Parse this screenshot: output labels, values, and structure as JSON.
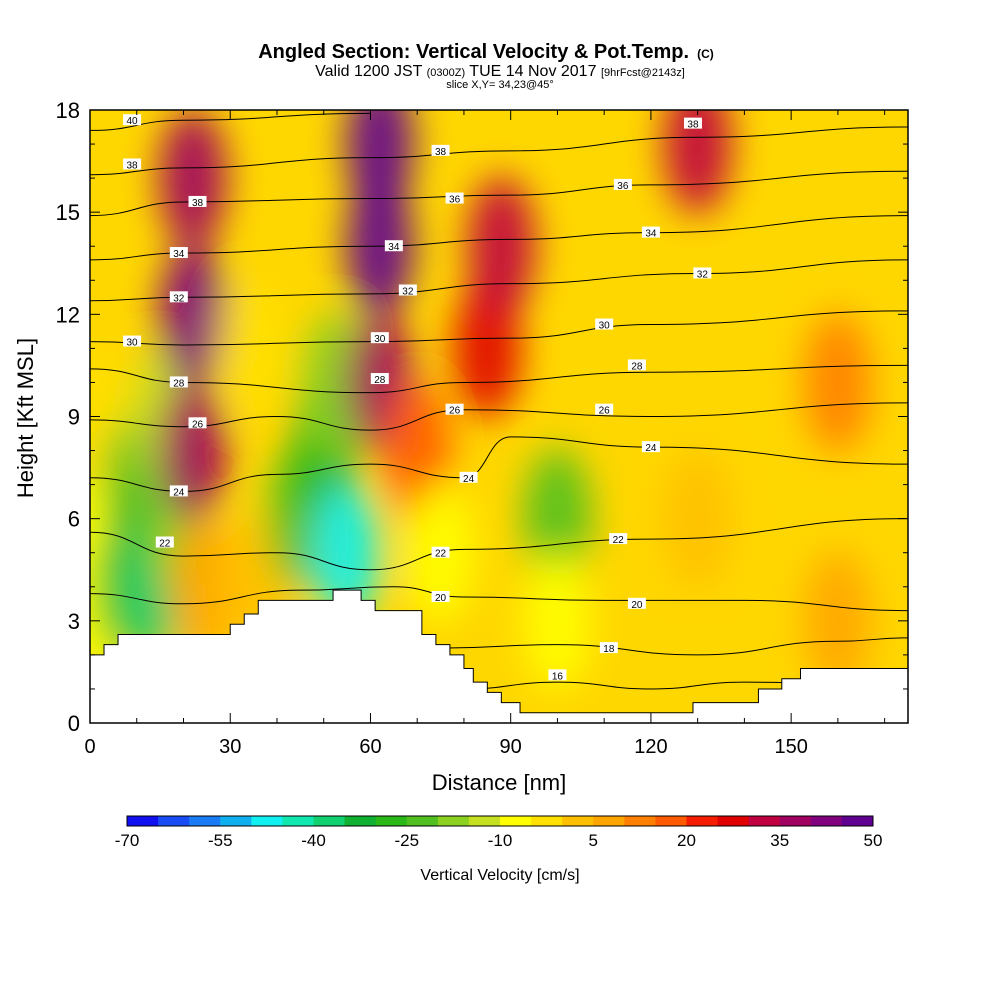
{
  "chart_data": {
    "type": "heatmap",
    "title": "Angled Section: Vertical Velocity & Pot.Temp.",
    "title_units": "(C)",
    "subtitle_parts": {
      "valid": "Valid 1200 JST",
      "utc": "(0300Z)",
      "date": "TUE 14 Nov 2017",
      "fcst": "[9hrFcst@2143z]"
    },
    "slice_label": "slice X,Y= 34,23@45°",
    "xlabel": "Distance [nm]",
    "ylabel": "Height [Kft MSL]",
    "xlim": [
      0,
      175
    ],
    "ylim": [
      0,
      18
    ],
    "x_ticks": [
      0,
      30,
      60,
      90,
      120,
      150
    ],
    "y_ticks": [
      0,
      3,
      6,
      9,
      12,
      15,
      18
    ],
    "colorbar": {
      "label": "Vertical Velocity [cm/s]",
      "tick_labels": [
        -70,
        -55,
        -40,
        -25,
        -10,
        5,
        20,
        35,
        50
      ],
      "colors": [
        "#1010f0",
        "#1a4cf5",
        "#1a7cf5",
        "#10b0f0",
        "#10f0f0",
        "#10e8b0",
        "#10d070",
        "#10b030",
        "#2ab818",
        "#50c020",
        "#8cd020",
        "#c4e020",
        "#ffff00",
        "#ffe000",
        "#ffc000",
        "#ffa500",
        "#ff8000",
        "#ff5a00",
        "#f51c00",
        "#e00000",
        "#c00040",
        "#a00060",
        "#800080",
        "#600090"
      ]
    },
    "velocity_cells": [
      {
        "x": 0,
        "y": 3,
        "value": -10
      },
      {
        "x": 0,
        "y": 6,
        "value": -10
      },
      {
        "x": 0,
        "y": 9,
        "value": -5
      },
      {
        "x": 8,
        "y": 4,
        "value": -25
      },
      {
        "x": 10,
        "y": 7,
        "value": -25
      },
      {
        "x": 12,
        "y": 5,
        "value": -35
      },
      {
        "x": 14,
        "y": 4,
        "value": -40
      },
      {
        "x": 16,
        "y": 9,
        "value": -15
      },
      {
        "x": 18,
        "y": 6,
        "value": -20
      },
      {
        "x": 22,
        "y": 8,
        "value": 35
      },
      {
        "x": 22,
        "y": 12,
        "value": 40
      },
      {
        "x": 22,
        "y": 16,
        "value": 35
      },
      {
        "x": 24,
        "y": 4,
        "value": 5
      },
      {
        "x": 35,
        "y": 4,
        "value": 0
      },
      {
        "x": 35,
        "y": 11,
        "value": -5
      },
      {
        "x": 45,
        "y": 6,
        "value": -25
      },
      {
        "x": 50,
        "y": 8,
        "value": -30
      },
      {
        "x": 55,
        "y": 5,
        "value": -50
      },
      {
        "x": 52,
        "y": 10,
        "value": -20
      },
      {
        "x": 62,
        "y": 10,
        "value": 35
      },
      {
        "x": 62,
        "y": 14,
        "value": 50
      },
      {
        "x": 62,
        "y": 17,
        "value": 45
      },
      {
        "x": 70,
        "y": 8,
        "value": 15
      },
      {
        "x": 75,
        "y": 5,
        "value": -10
      },
      {
        "x": 85,
        "y": 11,
        "value": 25
      },
      {
        "x": 88,
        "y": 14,
        "value": 30
      },
      {
        "x": 100,
        "y": 6,
        "value": -25
      },
      {
        "x": 100,
        "y": 3,
        "value": -10
      },
      {
        "x": 130,
        "y": 17,
        "value": 30
      },
      {
        "x": 130,
        "y": 6,
        "value": 0
      },
      {
        "x": 160,
        "y": 10,
        "value": 10
      },
      {
        "x": 160,
        "y": 3,
        "value": 5
      }
    ],
    "isentropes": [
      {
        "label": "16",
        "points": [
          [
            80,
            1.0
          ],
          [
            100,
            1.2
          ],
          [
            120,
            1.0
          ],
          [
            140,
            1.2
          ],
          [
            175,
            1.1
          ]
        ]
      },
      {
        "label": "18",
        "points": [
          [
            75,
            2.2
          ],
          [
            100,
            2.3
          ],
          [
            130,
            2.0
          ],
          [
            160,
            2.4
          ],
          [
            175,
            2.5
          ]
        ]
      },
      {
        "label": "20",
        "points": [
          [
            0,
            3.8
          ],
          [
            20,
            3.5
          ],
          [
            45,
            3.9
          ],
          [
            65,
            4.0
          ],
          [
            80,
            3.7
          ],
          [
            110,
            3.6
          ],
          [
            140,
            3.6
          ],
          [
            175,
            3.3
          ]
        ]
      },
      {
        "label": "22",
        "points": [
          [
            0,
            5.6
          ],
          [
            20,
            4.9
          ],
          [
            40,
            5.0
          ],
          [
            60,
            4.5
          ],
          [
            80,
            5.1
          ],
          [
            120,
            5.4
          ],
          [
            175,
            6.0
          ]
        ]
      },
      {
        "label": "24",
        "points": [
          [
            0,
            7.2
          ],
          [
            20,
            6.8
          ],
          [
            40,
            7.3
          ],
          [
            60,
            7.6
          ],
          [
            80,
            7.2
          ],
          [
            90,
            8.4
          ],
          [
            120,
            8.1
          ],
          [
            175,
            7.6
          ]
        ]
      },
      {
        "label": "26",
        "points": [
          [
            0,
            8.9
          ],
          [
            20,
            8.7
          ],
          [
            40,
            9.0
          ],
          [
            60,
            8.6
          ],
          [
            80,
            9.2
          ],
          [
            120,
            9.0
          ],
          [
            175,
            9.4
          ]
        ]
      },
      {
        "label": "28",
        "points": [
          [
            0,
            10.4
          ],
          [
            20,
            10.0
          ],
          [
            60,
            9.7
          ],
          [
            80,
            10.0
          ],
          [
            120,
            10.3
          ],
          [
            175,
            10.5
          ]
        ]
      },
      {
        "label": "30",
        "points": [
          [
            0,
            11.2
          ],
          [
            20,
            11.1
          ],
          [
            60,
            11.2
          ],
          [
            90,
            11.3
          ],
          [
            120,
            11.7
          ],
          [
            175,
            12.1
          ]
        ]
      },
      {
        "label": "32",
        "points": [
          [
            0,
            12.4
          ],
          [
            20,
            12.5
          ],
          [
            60,
            12.6
          ],
          [
            90,
            12.9
          ],
          [
            130,
            13.2
          ],
          [
            175,
            13.6
          ]
        ]
      },
      {
        "label": "34",
        "points": [
          [
            0,
            13.6
          ],
          [
            20,
            13.8
          ],
          [
            60,
            14.0
          ],
          [
            90,
            14.2
          ],
          [
            120,
            14.4
          ],
          [
            175,
            14.9
          ]
        ]
      },
      {
        "label": "36",
        "points": [
          [
            0,
            14.9
          ],
          [
            20,
            15.3
          ],
          [
            60,
            15.4
          ],
          [
            90,
            15.5
          ],
          [
            120,
            15.8
          ],
          [
            175,
            16.2
          ]
        ]
      },
      {
        "label": "38",
        "points": [
          [
            0,
            16.1
          ],
          [
            20,
            16.3
          ],
          [
            60,
            16.6
          ],
          [
            90,
            16.8
          ],
          [
            130,
            17.2
          ],
          [
            175,
            17.5
          ]
        ]
      },
      {
        "label": "40",
        "points": [
          [
            0,
            17.4
          ],
          [
            20,
            17.7
          ],
          [
            60,
            17.9
          ]
        ]
      }
    ],
    "contour_labels": [
      {
        "x": 9,
        "y": 17.7,
        "text": "40"
      },
      {
        "x": 9,
        "y": 16.4,
        "text": "38"
      },
      {
        "x": 23,
        "y": 15.3,
        "text": "38"
      },
      {
        "x": 19,
        "y": 13.8,
        "text": "34"
      },
      {
        "x": 19,
        "y": 12.5,
        "text": "32"
      },
      {
        "x": 9,
        "y": 11.2,
        "text": "30"
      },
      {
        "x": 19,
        "y": 10.0,
        "text": "28"
      },
      {
        "x": 23,
        "y": 8.8,
        "text": "26"
      },
      {
        "x": 19,
        "y": 6.8,
        "text": "24"
      },
      {
        "x": 16,
        "y": 5.3,
        "text": "22"
      },
      {
        "x": 75,
        "y": 16.8,
        "text": "38"
      },
      {
        "x": 78,
        "y": 15.4,
        "text": "36"
      },
      {
        "x": 65,
        "y": 14.0,
        "text": "34"
      },
      {
        "x": 68,
        "y": 12.7,
        "text": "32"
      },
      {
        "x": 62,
        "y": 11.3,
        "text": "30"
      },
      {
        "x": 62,
        "y": 10.1,
        "text": "28"
      },
      {
        "x": 78,
        "y": 9.2,
        "text": "26"
      },
      {
        "x": 81,
        "y": 7.2,
        "text": "24"
      },
      {
        "x": 75,
        "y": 5.0,
        "text": "22"
      },
      {
        "x": 75,
        "y": 3.7,
        "text": "20"
      },
      {
        "x": 129,
        "y": 17.6,
        "text": "38"
      },
      {
        "x": 114,
        "y": 15.8,
        "text": "36"
      },
      {
        "x": 120,
        "y": 14.4,
        "text": "34"
      },
      {
        "x": 131,
        "y": 13.2,
        "text": "32"
      },
      {
        "x": 110,
        "y": 11.7,
        "text": "30"
      },
      {
        "x": 117,
        "y": 10.5,
        "text": "28"
      },
      {
        "x": 110,
        "y": 9.2,
        "text": "26"
      },
      {
        "x": 120,
        "y": 8.1,
        "text": "24"
      },
      {
        "x": 113,
        "y": 5.4,
        "text": "22"
      },
      {
        "x": 117,
        "y": 3.5,
        "text": "20"
      },
      {
        "x": 111,
        "y": 2.2,
        "text": "18"
      },
      {
        "x": 100,
        "y": 1.4,
        "text": "16"
      }
    ],
    "terrain": [
      [
        0,
        2.0
      ],
      [
        3,
        2.0
      ],
      [
        3,
        2.3
      ],
      [
        6,
        2.3
      ],
      [
        6,
        2.6
      ],
      [
        8,
        2.6
      ],
      [
        10,
        2.6
      ],
      [
        30,
        2.6
      ],
      [
        30,
        2.9
      ],
      [
        33,
        2.9
      ],
      [
        33,
        3.2
      ],
      [
        36,
        3.2
      ],
      [
        36,
        3.6
      ],
      [
        52,
        3.6
      ],
      [
        52,
        3.9
      ],
      [
        58,
        3.9
      ],
      [
        58,
        3.6
      ],
      [
        61,
        3.6
      ],
      [
        61,
        3.3
      ],
      [
        71,
        3.3
      ],
      [
        71,
        2.6
      ],
      [
        74,
        2.6
      ],
      [
        74,
        2.3
      ],
      [
        77,
        2.3
      ],
      [
        77,
        2.0
      ],
      [
        80,
        2.0
      ],
      [
        80,
        1.6
      ],
      [
        82,
        1.6
      ],
      [
        82,
        1.2
      ],
      [
        85,
        1.2
      ],
      [
        85,
        0.9
      ],
      [
        88,
        0.9
      ],
      [
        88,
        0.6
      ],
      [
        92,
        0.6
      ],
      [
        92,
        0.3
      ],
      [
        98,
        0.3
      ],
      [
        98,
        0.3
      ],
      [
        129,
        0.3
      ],
      [
        129,
        0.6
      ],
      [
        143,
        0.6
      ],
      [
        143,
        1.0
      ],
      [
        148,
        1.0
      ],
      [
        148,
        1.3
      ],
      [
        152,
        1.3
      ],
      [
        152,
        1.6
      ],
      [
        175,
        1.6
      ]
    ]
  }
}
